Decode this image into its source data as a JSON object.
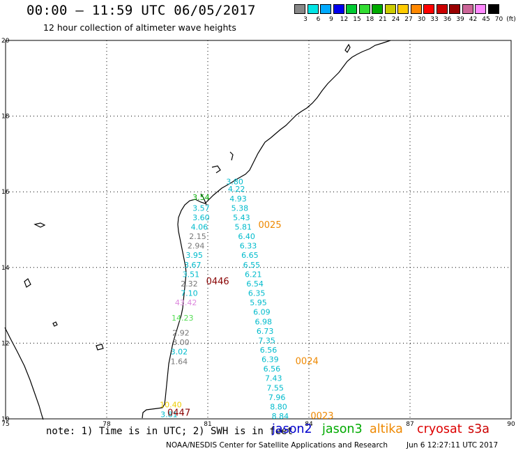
{
  "header": {
    "title": "00:00 – 11:59 UTC 06/05/2017",
    "subtitle": "12 hour collection of altimeter wave heights"
  },
  "colorbar": {
    "unit": "(ft)",
    "colors": [
      "#888888",
      "#00e5e5",
      "#00aaff",
      "#0000ee",
      "#00cc33",
      "#33dd33",
      "#00aa00",
      "#cccc00",
      "#ffcc00",
      "#ff8800",
      "#ff0000",
      "#cc0000",
      "#990000",
      "#cc6699",
      "#ff88ff",
      "#000000"
    ],
    "labels": [
      "3",
      "6",
      "9",
      "12",
      "15",
      "18",
      "21",
      "24",
      "27",
      "30",
      "33",
      "36",
      "39",
      "42",
      "45",
      "70"
    ]
  },
  "axes": {
    "lon_ticks": [
      "75",
      "78",
      "81",
      "84",
      "87",
      "90"
    ],
    "lat_ticks": [
      "20",
      "18",
      "16",
      "14",
      "12",
      "10"
    ],
    "lon_range": [
      75,
      90
    ],
    "lat_range": [
      10,
      20
    ],
    "grid": true
  },
  "pass_labels": [
    {
      "label": "0025",
      "lon": 82.5,
      "lat": 15.05,
      "color": "#ee8800"
    },
    {
      "label": "0446",
      "lon": 80.95,
      "lat": 13.55,
      "color": "#880000"
    },
    {
      "label": "0024",
      "lon": 83.6,
      "lat": 11.45,
      "color": "#ee8800"
    },
    {
      "label": "0447",
      "lon": 79.8,
      "lat": 10.08,
      "color": "#880000"
    },
    {
      "label": "0023",
      "lon": 84.05,
      "lat": 10.0,
      "color": "#ee8800"
    }
  ],
  "swh_values": [
    {
      "v": "3.80",
      "lon": 81.8,
      "lat": 16.2,
      "color": "#00bbcc"
    },
    {
      "v": "4.22",
      "lon": 81.85,
      "lat": 16.0,
      "color": "#00bbcc"
    },
    {
      "v": "4.93",
      "lon": 81.9,
      "lat": 15.75,
      "color": "#00bbcc"
    },
    {
      "v": "5.38",
      "lon": 81.95,
      "lat": 15.5,
      "color": "#00bbcc"
    },
    {
      "v": "5.43",
      "lon": 82.0,
      "lat": 15.25,
      "color": "#00bbcc"
    },
    {
      "v": "5.81",
      "lon": 82.05,
      "lat": 15.0,
      "color": "#00bbcc"
    },
    {
      "v": "6.40",
      "lon": 82.15,
      "lat": 14.75,
      "color": "#00bbcc"
    },
    {
      "v": "6.33",
      "lon": 82.2,
      "lat": 14.5,
      "color": "#00bbcc"
    },
    {
      "v": "6.65",
      "lon": 82.25,
      "lat": 14.25,
      "color": "#00bbcc"
    },
    {
      "v": "6.55",
      "lon": 82.3,
      "lat": 14.0,
      "color": "#00bbcc"
    },
    {
      "v": "6.21",
      "lon": 82.35,
      "lat": 13.75,
      "color": "#00bbcc"
    },
    {
      "v": "6.54",
      "lon": 82.4,
      "lat": 13.5,
      "color": "#00bbcc"
    },
    {
      "v": "6.35",
      "lon": 82.45,
      "lat": 13.25,
      "color": "#00bbcc"
    },
    {
      "v": "5.95",
      "lon": 82.5,
      "lat": 13.0,
      "color": "#00bbcc"
    },
    {
      "v": "6.09",
      "lon": 82.6,
      "lat": 12.75,
      "color": "#00bbcc"
    },
    {
      "v": "6.98",
      "lon": 82.65,
      "lat": 12.5,
      "color": "#00bbcc"
    },
    {
      "v": "6.73",
      "lon": 82.7,
      "lat": 12.25,
      "color": "#00bbcc"
    },
    {
      "v": "7.35",
      "lon": 82.75,
      "lat": 12.0,
      "color": "#00bbcc"
    },
    {
      "v": "6.56",
      "lon": 82.8,
      "lat": 11.75,
      "color": "#00bbcc"
    },
    {
      "v": "6.39",
      "lon": 82.85,
      "lat": 11.5,
      "color": "#00bbcc"
    },
    {
      "v": "6.56",
      "lon": 82.9,
      "lat": 11.25,
      "color": "#00bbcc"
    },
    {
      "v": "7.43",
      "lon": 82.95,
      "lat": 11.0,
      "color": "#00bbcc"
    },
    {
      "v": "7.55",
      "lon": 83.0,
      "lat": 10.75,
      "color": "#00bbcc"
    },
    {
      "v": "7.96",
      "lon": 83.05,
      "lat": 10.5,
      "color": "#00bbcc"
    },
    {
      "v": "8.80",
      "lon": 83.1,
      "lat": 10.25,
      "color": "#00bbcc"
    },
    {
      "v": "8.84",
      "lon": 83.15,
      "lat": 10.0,
      "color": "#00bbcc"
    },
    {
      "v": "3.54",
      "lon": 80.8,
      "lat": 15.78,
      "color": "#00aa00"
    },
    {
      "v": "3.57",
      "lon": 80.8,
      "lat": 15.5,
      "color": "#00bbcc"
    },
    {
      "v": "3.60",
      "lon": 80.8,
      "lat": 15.25,
      "color": "#00bbcc"
    },
    {
      "v": "4.06",
      "lon": 80.75,
      "lat": 15.0,
      "color": "#00bbcc"
    },
    {
      "v": "2.15",
      "lon": 80.7,
      "lat": 14.75,
      "color": "#777777"
    },
    {
      "v": "2.94",
      "lon": 80.65,
      "lat": 14.5,
      "color": "#777777"
    },
    {
      "v": "3.95",
      "lon": 80.6,
      "lat": 14.25,
      "color": "#00bbcc"
    },
    {
      "v": "3.67",
      "lon": 80.55,
      "lat": 14.0,
      "color": "#00bbcc"
    },
    {
      "v": "3.51",
      "lon": 80.5,
      "lat": 13.75,
      "color": "#00bbcc"
    },
    {
      "v": "2.32",
      "lon": 80.45,
      "lat": 13.5,
      "color": "#777777"
    },
    {
      "v": "7.10",
      "lon": 80.45,
      "lat": 13.25,
      "color": "#00bbcc"
    },
    {
      "v": "43.42",
      "lon": 80.35,
      "lat": 13.0,
      "color": "#dd88dd"
    },
    {
      "v": "14.23",
      "lon": 80.25,
      "lat": 12.6,
      "color": "#55dd55"
    },
    {
      "v": "2.92",
      "lon": 80.2,
      "lat": 12.2,
      "color": "#777777"
    },
    {
      "v": "3.00",
      "lon": 80.2,
      "lat": 11.95,
      "color": "#777777"
    },
    {
      "v": "3.02",
      "lon": 80.15,
      "lat": 11.7,
      "color": "#00bbcc"
    },
    {
      "v": "1.64",
      "lon": 80.15,
      "lat": 11.45,
      "color": "#777777"
    },
    {
      "v": "10.40",
      "lon": 79.9,
      "lat": 10.3,
      "color": "#eecc00"
    },
    {
      "v": "3.81",
      "lon": 79.85,
      "lat": 10.05,
      "color": "#00bbcc"
    }
  ],
  "footer": {
    "note": "note: 1) Time is in UTC; 2) SWH is in feet",
    "satellites": [
      {
        "name": "jason2",
        "color": "#0000cc"
      },
      {
        "name": "jason3",
        "color": "#00aa00"
      },
      {
        "name": "altika",
        "color": "#ee8800"
      },
      {
        "name": "cryosat",
        "color": "#dd0000"
      },
      {
        "name": "s3a",
        "color": "#cc0000"
      }
    ],
    "credit": "NOAA/NESDIS Center for Satellite Applications and Research",
    "timestamp": "Jun  6 12:27:11 UTC 2017"
  }
}
